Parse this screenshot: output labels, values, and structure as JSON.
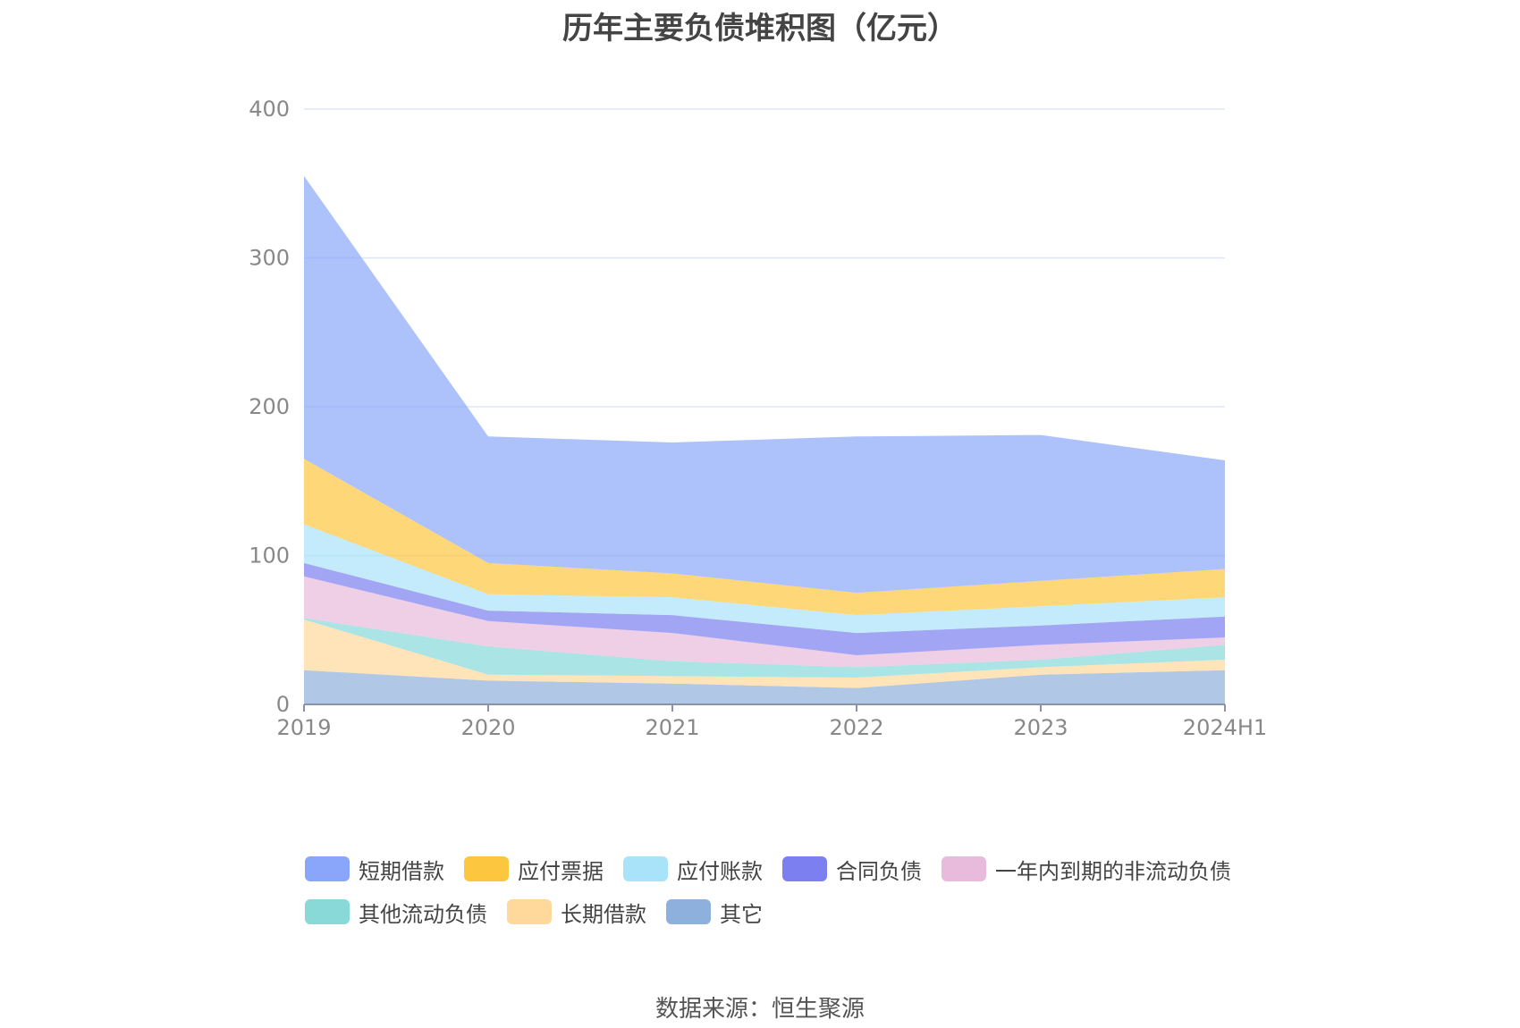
{
  "title": "历年主要负债堆积图（亿元）",
  "source": "数据来源：恒生聚源",
  "chart_data": {
    "type": "area",
    "stacked": true,
    "title": "历年主要负债堆积图（亿元）",
    "xlabel": "",
    "ylabel": "",
    "categories": [
      "2019",
      "2020",
      "2021",
      "2022",
      "2023",
      "2024H1"
    ],
    "ylim": [
      0,
      400
    ],
    "yticks": [
      0,
      100,
      200,
      300,
      400
    ],
    "grid": true,
    "legend_position": "bottom",
    "series": [
      {
        "name": "其它",
        "color": "#8eb0dc",
        "values": [
          23,
          16,
          14,
          11,
          20,
          23
        ]
      },
      {
        "name": "长期借款",
        "color": "#ffd89b",
        "values": [
          34,
          4,
          5,
          7,
          5,
          7
        ]
      },
      {
        "name": "其他流动负债",
        "color": "#88d9d8",
        "values": [
          1,
          19,
          10,
          7,
          5,
          10
        ]
      },
      {
        "name": "一年内到期的非流动负债",
        "color": "#e8bbdc",
        "values": [
          28,
          17,
          19,
          8,
          10,
          5
        ]
      },
      {
        "name": "合同负债",
        "color": "#7b7ff0",
        "values": [
          9,
          7,
          12,
          15,
          13,
          14
        ]
      },
      {
        "name": "应付账款",
        "color": "#a9e3fa",
        "values": [
          26,
          11,
          12,
          12,
          13,
          13
        ]
      },
      {
        "name": "应付票据",
        "color": "#fdc63f",
        "values": [
          44,
          21,
          16,
          15,
          17,
          19
        ]
      },
      {
        "name": "短期借款",
        "color": "#8aa6fa",
        "values": [
          190,
          85,
          88,
          105,
          98,
          73
        ]
      }
    ],
    "legend_order": [
      "短期借款",
      "应付票据",
      "应付账款",
      "合同负债",
      "一年内到期的非流动负债",
      "其他流动负债",
      "长期借款",
      "其它"
    ]
  }
}
